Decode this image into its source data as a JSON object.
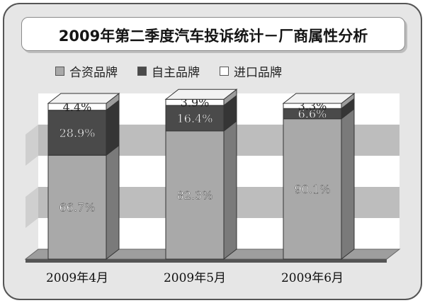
{
  "chart_data": {
    "type": "bar",
    "stacked": true,
    "three_d": true,
    "title": "2009年第二季度汽车投诉统计－厂商属性分析",
    "categories": [
      "2009年4月",
      "2009年5月",
      "2009年6月"
    ],
    "series": [
      {
        "name": "合资品牌",
        "values": [
          66.7,
          82.3,
          90.1
        ],
        "labels": [
          "66.7%",
          "82.3%",
          "90.1%"
        ],
        "color": "#a9a9a9"
      },
      {
        "name": "自主品牌",
        "values": [
          28.9,
          16.4,
          6.6
        ],
        "labels": [
          "28.9%",
          "16.4%",
          "6.6%"
        ],
        "color": "#4a4a4a"
      },
      {
        "name": "进口品牌",
        "values": [
          4.4,
          3.9,
          3.3
        ],
        "labels": [
          "4.4%",
          "3.9%",
          "3.3%"
        ],
        "color": "#ffffff"
      }
    ],
    "ylim": [
      0,
      100
    ],
    "legend_position": "top",
    "background_bands": true
  }
}
